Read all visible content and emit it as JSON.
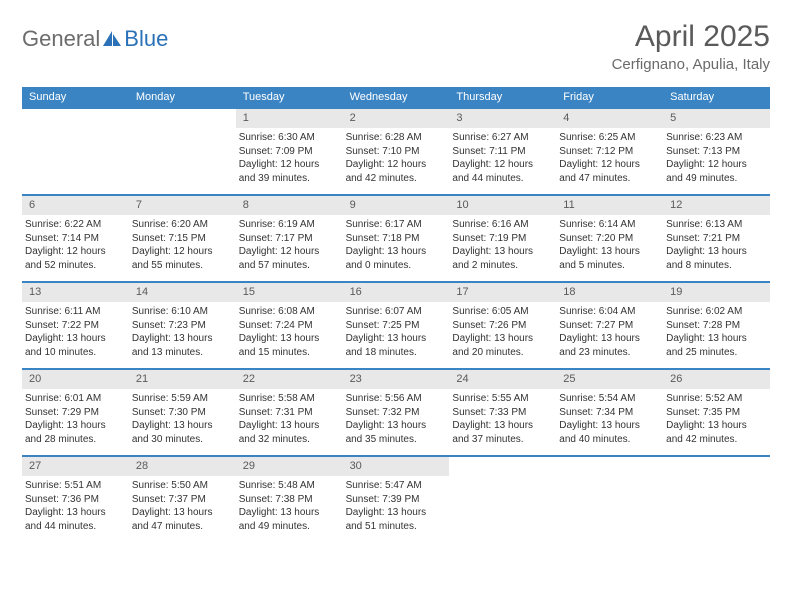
{
  "logo": {
    "text1": "General",
    "text2": "Blue"
  },
  "title": "April 2025",
  "location": "Cerfignano, Apulia, Italy",
  "colors": {
    "brand_blue": "#3b84c4",
    "header_gray": "#e8e8e8",
    "text_dark": "#333333",
    "text_mid": "#5a5a5a",
    "logo_gray": "#6c6c6c",
    "logo_blue": "#2a71b8",
    "border_blue": "#3b84c4"
  },
  "weekdays": [
    "Sunday",
    "Monday",
    "Tuesday",
    "Wednesday",
    "Thursday",
    "Friday",
    "Saturday"
  ],
  "firstWeekdayIndex": 2,
  "days": [
    {
      "n": 1,
      "sunrise": "6:30 AM",
      "sunset": "7:09 PM",
      "daylight": "12 hours and 39 minutes."
    },
    {
      "n": 2,
      "sunrise": "6:28 AM",
      "sunset": "7:10 PM",
      "daylight": "12 hours and 42 minutes."
    },
    {
      "n": 3,
      "sunrise": "6:27 AM",
      "sunset": "7:11 PM",
      "daylight": "12 hours and 44 minutes."
    },
    {
      "n": 4,
      "sunrise": "6:25 AM",
      "sunset": "7:12 PM",
      "daylight": "12 hours and 47 minutes."
    },
    {
      "n": 5,
      "sunrise": "6:23 AM",
      "sunset": "7:13 PM",
      "daylight": "12 hours and 49 minutes."
    },
    {
      "n": 6,
      "sunrise": "6:22 AM",
      "sunset": "7:14 PM",
      "daylight": "12 hours and 52 minutes."
    },
    {
      "n": 7,
      "sunrise": "6:20 AM",
      "sunset": "7:15 PM",
      "daylight": "12 hours and 55 minutes."
    },
    {
      "n": 8,
      "sunrise": "6:19 AM",
      "sunset": "7:17 PM",
      "daylight": "12 hours and 57 minutes."
    },
    {
      "n": 9,
      "sunrise": "6:17 AM",
      "sunset": "7:18 PM",
      "daylight": "13 hours and 0 minutes."
    },
    {
      "n": 10,
      "sunrise": "6:16 AM",
      "sunset": "7:19 PM",
      "daylight": "13 hours and 2 minutes."
    },
    {
      "n": 11,
      "sunrise": "6:14 AM",
      "sunset": "7:20 PM",
      "daylight": "13 hours and 5 minutes."
    },
    {
      "n": 12,
      "sunrise": "6:13 AM",
      "sunset": "7:21 PM",
      "daylight": "13 hours and 8 minutes."
    },
    {
      "n": 13,
      "sunrise": "6:11 AM",
      "sunset": "7:22 PM",
      "daylight": "13 hours and 10 minutes."
    },
    {
      "n": 14,
      "sunrise": "6:10 AM",
      "sunset": "7:23 PM",
      "daylight": "13 hours and 13 minutes."
    },
    {
      "n": 15,
      "sunrise": "6:08 AM",
      "sunset": "7:24 PM",
      "daylight": "13 hours and 15 minutes."
    },
    {
      "n": 16,
      "sunrise": "6:07 AM",
      "sunset": "7:25 PM",
      "daylight": "13 hours and 18 minutes."
    },
    {
      "n": 17,
      "sunrise": "6:05 AM",
      "sunset": "7:26 PM",
      "daylight": "13 hours and 20 minutes."
    },
    {
      "n": 18,
      "sunrise": "6:04 AM",
      "sunset": "7:27 PM",
      "daylight": "13 hours and 23 minutes."
    },
    {
      "n": 19,
      "sunrise": "6:02 AM",
      "sunset": "7:28 PM",
      "daylight": "13 hours and 25 minutes."
    },
    {
      "n": 20,
      "sunrise": "6:01 AM",
      "sunset": "7:29 PM",
      "daylight": "13 hours and 28 minutes."
    },
    {
      "n": 21,
      "sunrise": "5:59 AM",
      "sunset": "7:30 PM",
      "daylight": "13 hours and 30 minutes."
    },
    {
      "n": 22,
      "sunrise": "5:58 AM",
      "sunset": "7:31 PM",
      "daylight": "13 hours and 32 minutes."
    },
    {
      "n": 23,
      "sunrise": "5:56 AM",
      "sunset": "7:32 PM",
      "daylight": "13 hours and 35 minutes."
    },
    {
      "n": 24,
      "sunrise": "5:55 AM",
      "sunset": "7:33 PM",
      "daylight": "13 hours and 37 minutes."
    },
    {
      "n": 25,
      "sunrise": "5:54 AM",
      "sunset": "7:34 PM",
      "daylight": "13 hours and 40 minutes."
    },
    {
      "n": 26,
      "sunrise": "5:52 AM",
      "sunset": "7:35 PM",
      "daylight": "13 hours and 42 minutes."
    },
    {
      "n": 27,
      "sunrise": "5:51 AM",
      "sunset": "7:36 PM",
      "daylight": "13 hours and 44 minutes."
    },
    {
      "n": 28,
      "sunrise": "5:50 AM",
      "sunset": "7:37 PM",
      "daylight": "13 hours and 47 minutes."
    },
    {
      "n": 29,
      "sunrise": "5:48 AM",
      "sunset": "7:38 PM",
      "daylight": "13 hours and 49 minutes."
    },
    {
      "n": 30,
      "sunrise": "5:47 AM",
      "sunset": "7:39 PM",
      "daylight": "13 hours and 51 minutes."
    }
  ],
  "labels": {
    "sunrise": "Sunrise:",
    "sunset": "Sunset:",
    "daylight": "Daylight:"
  }
}
